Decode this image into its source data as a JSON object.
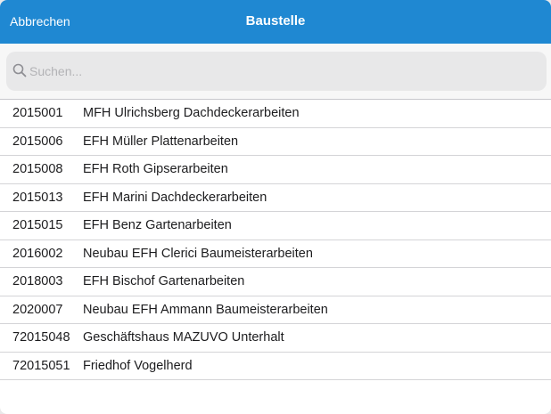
{
  "navbar": {
    "cancel_label": "Abbrechen",
    "title": "Baustelle",
    "color": "#1f88d2"
  },
  "search": {
    "placeholder": "Suchen...",
    "value": "",
    "icon": "search-icon"
  },
  "sites": [
    {
      "id": "2015001",
      "name": "MFH Ulrichsberg Dachdeckerarbeiten"
    },
    {
      "id": "2015006",
      "name": "EFH Müller Plattenarbeiten"
    },
    {
      "id": "2015008",
      "name": "EFH Roth Gipserarbeiten"
    },
    {
      "id": "2015013",
      "name": "EFH Marini Dachdeckerarbeiten"
    },
    {
      "id": "2015015",
      "name": "EFH Benz Gartenarbeiten"
    },
    {
      "id": "2016002",
      "name": "Neubau EFH Clerici Baumeisterarbeiten"
    },
    {
      "id": "2018003",
      "name": "EFH Bischof Gartenarbeiten"
    },
    {
      "id": "2020007",
      "name": "Neubau EFH Ammann Baumeisterarbeiten"
    },
    {
      "id": "72015048",
      "name": "Geschäftshaus MAZUVO Unterhalt"
    },
    {
      "id": "72015051",
      "name": "Friedhof Vogelherd"
    }
  ]
}
